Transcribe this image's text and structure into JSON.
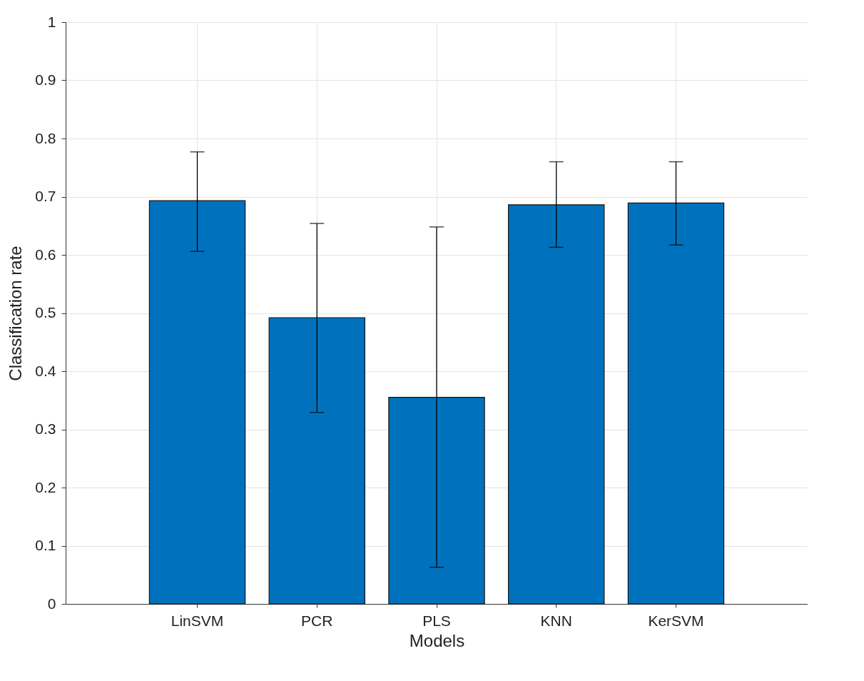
{
  "chart_data": {
    "type": "bar",
    "xlabel": "Models",
    "ylabel": "Classification rate",
    "categories": [
      "LinSVM",
      "PCR",
      "PLS",
      "KNN",
      "KerSVM"
    ],
    "values": [
      0.693,
      0.492,
      0.355,
      0.686,
      0.689
    ],
    "errors": [
      [
        0.606,
        0.777
      ],
      [
        0.329,
        0.654
      ],
      [
        0.063,
        0.648
      ],
      [
        0.613,
        0.76
      ],
      [
        0.617,
        0.76
      ]
    ],
    "color": "#0072bd",
    "ylim": [
      0,
      1
    ],
    "yticks": [
      0,
      0.1,
      0.2,
      0.3,
      0.4,
      0.5,
      0.6,
      0.7,
      0.8,
      0.9,
      1
    ],
    "grid": true
  }
}
